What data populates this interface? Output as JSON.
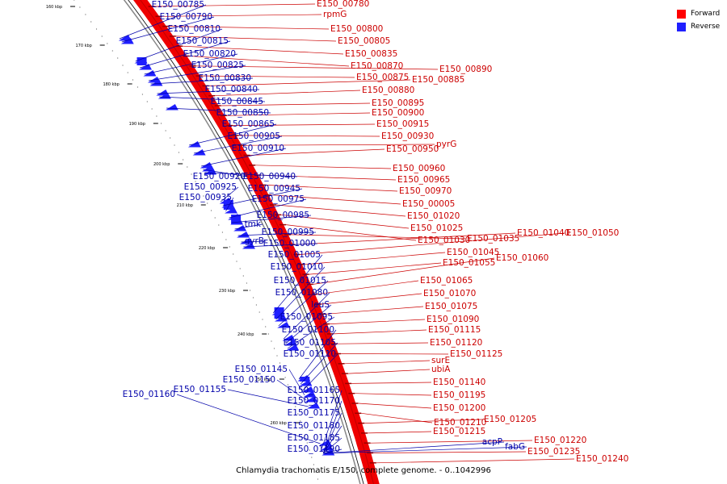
{
  "caption": "Chlamydia trachomatis E/150, complete genome. - 0..1042996",
  "legend": [
    {
      "label": "Forward",
      "color": "#ff0000"
    },
    {
      "label": "Reverse",
      "color": "#1f1fff"
    }
  ],
  "colors": {
    "forward": "#ee0000",
    "forward_label": "#cc0000",
    "reverse": "#1f1fff",
    "reverse_label": "#0000aa",
    "backbone": "#888888"
  },
  "ticks": [
    "160 kbp",
    "170 kbp",
    "180 kbp",
    "190 kbp",
    "200 kbp",
    "210 kbp",
    "220 kbp",
    "230 kbp",
    "240 kbp",
    "250 kbp",
    "260 kbp"
  ],
  "forward_labels": [
    "E150_00780",
    "rpmG",
    "E150_00800",
    "E150_00805",
    "E150_00835",
    "E150_00870",
    "E150_00890",
    "E150_00875",
    "E150_00885",
    "E150_00880",
    "E150_00895",
    "E150_00900",
    "E150_00915",
    "E150_00930",
    "pyrG",
    "E150_00950",
    "E150_00960",
    "E150_00965",
    "E150_00970",
    "E150_00005",
    "E150_01020",
    "E150_01025",
    "E150_01030",
    "E150_01035",
    "E150_01040",
    "E150_01050",
    "E150_01045",
    "E150_01055",
    "E150_01060",
    "E150_01065",
    "E150_01070",
    "E150_01075",
    "E150_01090",
    "E150_01115",
    "E150_01120",
    "E150_01125",
    "surE",
    "ubiA",
    "E150_01140",
    "E150_01195",
    "E150_01200",
    "E150_01210",
    "E150_01205",
    "E150_01215",
    "E150_01220",
    "E150_01235",
    "E150_01240"
  ],
  "reverse_labels": [
    "E150_00785",
    "E150_00790",
    "E150_00810",
    "E150_00815",
    "E150_00820",
    "E150_00825",
    "E150_00830",
    "E150_00840",
    "E150_00845",
    "E150_00850",
    "E150_00865",
    "E150_00905",
    "E150_00910",
    "E150_00920",
    "E150_00940",
    "E150_00925",
    "E150_00945",
    "E150_00935",
    "E150_00975",
    "E150_00985",
    "tmk",
    "E150_00995",
    "gyrB",
    "E150_01000",
    "E150_01005",
    "E150_01010",
    "E150_01015",
    "E150_01080",
    "leuS",
    "E150_01095",
    "E150_01100",
    "E150_01105",
    "E150_01110",
    "E150_01145",
    "E150_01150",
    "E150_01155",
    "E150_01160",
    "E150_01165",
    "E150_01170",
    "E150_01175",
    "E150_01180",
    "E150_01185",
    "E150_01190",
    "acpP",
    "fabG"
  ]
}
